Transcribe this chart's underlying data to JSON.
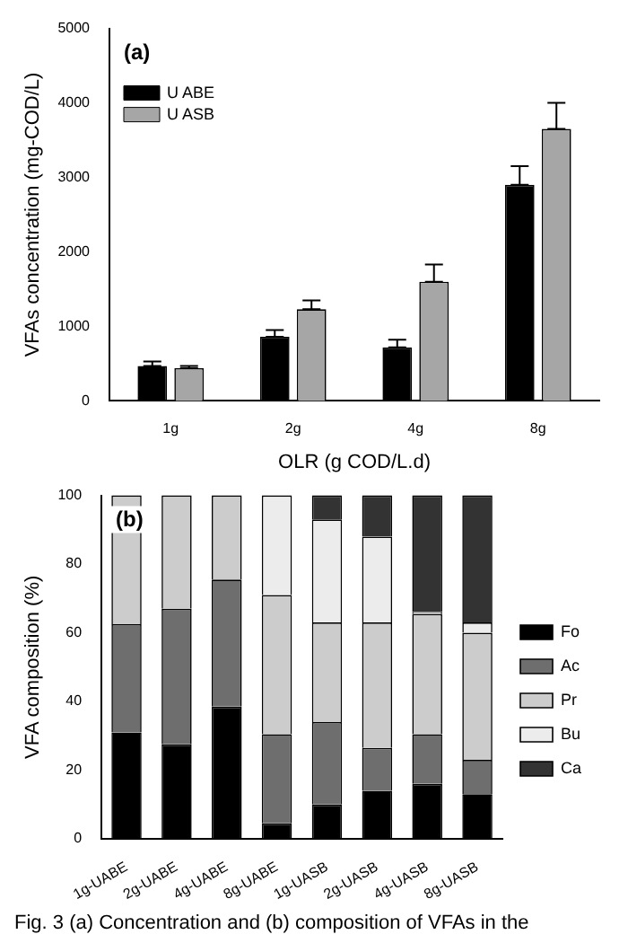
{
  "chart_data": [
    {
      "type": "bar",
      "xlabel": "OLR (g COD/L.d)",
      "ylabel": "VFAs concentration (mg-COD/L)",
      "categories": [
        "1g",
        "2g",
        "4g",
        "8g"
      ],
      "series": [
        {
          "name": "U ABE",
          "color": "#000000",
          "values": [
            470,
            860,
            720,
            2900
          ],
          "errors": [
            [
              470,
              530
            ],
            [
              860,
              950
            ],
            [
              720,
              820
            ],
            [
              2900,
              3150
            ]
          ]
        },
        {
          "name": "U ASB",
          "color": "#a6a6a6",
          "values": [
            440,
            1230,
            1600,
            3650
          ],
          "errors": [
            [
              440,
              470
            ],
            [
              1230,
              1350
            ],
            [
              1600,
              1830
            ],
            [
              3650,
              4000
            ]
          ]
        }
      ],
      "ylim": [
        0,
        5000
      ],
      "yticks": [
        0,
        1000,
        2000,
        3000,
        4000,
        5000
      ],
      "grid": false,
      "legend": "top left",
      "annotations": [
        "(a)"
      ]
    },
    {
      "type": "bar",
      "stacked": true,
      "ylabel": "VFA composition (%)",
      "categories": [
        "1g-UABE",
        "2g-UABE",
        "4g-UABE",
        "8g-UABE",
        "1g-UASB",
        "2g-UASB",
        "4g-UASB",
        "8g-UASB"
      ],
      "series": [
        {
          "name": "Fo",
          "color": "#000000",
          "values": [
            31,
            27.5,
            38.5,
            4.5,
            10,
            14,
            16,
            13
          ]
        },
        {
          "name": "Ac",
          "color": "#6e6e6e",
          "values": [
            31.5,
            39.5,
            37,
            26,
            24,
            12.5,
            14.5,
            10
          ]
        },
        {
          "name": "Pr",
          "color": "#cccccc",
          "values": [
            37.5,
            33,
            24.5,
            40.5,
            29,
            36.5,
            35,
            37
          ]
        },
        {
          "name": "Bu",
          "color": "#ececec",
          "values": [
            0,
            0,
            0,
            29,
            30,
            25,
            0.5,
            3
          ]
        },
        {
          "name": "Ca",
          "color": "#333333",
          "values": [
            0,
            0,
            0,
            0,
            7,
            12,
            34,
            37
          ]
        }
      ],
      "ylim": [
        0,
        100
      ],
      "yticks": [
        0,
        20,
        40,
        60,
        80,
        100
      ],
      "grid": false,
      "legend": "right",
      "annotations": [
        "(b)",
        "Fig. 3 (a) Concentration and (b) composition of VFAs in the"
      ]
    }
  ]
}
